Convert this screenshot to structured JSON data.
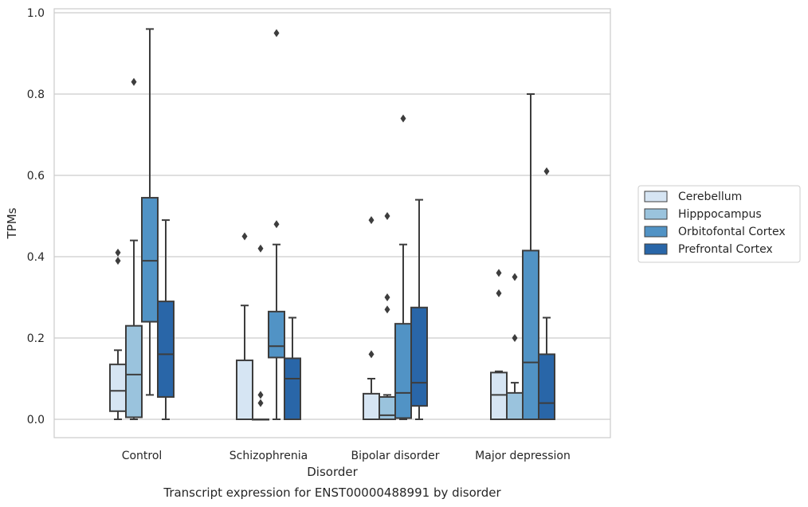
{
  "caption": "Transcript expression for ENST00000488991 by disorder",
  "chart_data": {
    "type": "boxplot",
    "xlabel": "Disorder",
    "ylabel": "TPMs",
    "ylim": [
      -0.045,
      1.01
    ],
    "yticks": [
      "0.0",
      "0.2",
      "0.4",
      "0.6",
      "0.8",
      "1.0"
    ],
    "grid": "horizontal",
    "legend_position": "right",
    "categories": [
      "Control",
      "Schizophrenia",
      "Bipolar disorder",
      "Major depression"
    ],
    "series": [
      {
        "name": "Cerebellum",
        "color": "#d6e5f3",
        "boxes": [
          {
            "whislo": 0.0,
            "q1": 0.02,
            "med": 0.07,
            "q3": 0.135,
            "whishi": 0.17,
            "fliers": [
              0.39,
              0.41
            ]
          },
          {
            "whislo": 0.0,
            "q1": 0.0,
            "med": 0.0,
            "q3": 0.145,
            "whishi": 0.28,
            "fliers": [
              0.45
            ]
          },
          {
            "whislo": 0.0,
            "q1": 0.0,
            "med": 0.0,
            "q3": 0.063,
            "whishi": 0.1,
            "fliers": [
              0.16,
              0.49
            ]
          },
          {
            "whislo": 0.0,
            "q1": 0.0,
            "med": 0.06,
            "q3": 0.115,
            "whishi": 0.118,
            "fliers": [
              0.31,
              0.36
            ]
          }
        ]
      },
      {
        "name": "Hipppocampus",
        "color": "#9ac3dd",
        "boxes": [
          {
            "whislo": 0.0,
            "q1": 0.005,
            "med": 0.11,
            "q3": 0.23,
            "whishi": 0.44,
            "fliers": [
              0.83
            ]
          },
          {
            "whislo": 0.0,
            "q1": 0.0,
            "med": 0.0,
            "q3": 0.0,
            "whishi": 0.0,
            "fliers": [
              0.04,
              0.06,
              0.42
            ]
          },
          {
            "whislo": 0.0,
            "q1": 0.0,
            "med": 0.01,
            "q3": 0.055,
            "whishi": 0.06,
            "fliers": [
              0.27,
              0.3,
              0.5
            ]
          },
          {
            "whislo": 0.0,
            "q1": 0.0,
            "med": 0.0,
            "q3": 0.065,
            "whishi": 0.09,
            "fliers": [
              0.2,
              0.35
            ]
          }
        ]
      },
      {
        "name": "Orbitofontal Cortex",
        "color": "#5193c5",
        "boxes": [
          {
            "whislo": 0.06,
            "q1": 0.24,
            "med": 0.39,
            "q3": 0.545,
            "whishi": 0.96,
            "fliers": []
          },
          {
            "whislo": 0.0,
            "q1": 0.152,
            "med": 0.18,
            "q3": 0.265,
            "whishi": 0.43,
            "fliers": [
              0.48,
              0.95
            ]
          },
          {
            "whislo": 0.0,
            "q1": 0.003,
            "med": 0.065,
            "q3": 0.235,
            "whishi": 0.43,
            "fliers": [
              0.74
            ]
          },
          {
            "whislo": 0.0,
            "q1": 0.0,
            "med": 0.14,
            "q3": 0.415,
            "whishi": 0.8,
            "fliers": []
          }
        ]
      },
      {
        "name": "Prefrontal Cortex",
        "color": "#2966a8",
        "boxes": [
          {
            "whislo": 0.0,
            "q1": 0.055,
            "med": 0.16,
            "q3": 0.29,
            "whishi": 0.49,
            "fliers": []
          },
          {
            "whislo": 0.0,
            "q1": 0.0,
            "med": 0.1,
            "q3": 0.15,
            "whishi": 0.25,
            "fliers": []
          },
          {
            "whislo": 0.0,
            "q1": 0.033,
            "med": 0.09,
            "q3": 0.275,
            "whishi": 0.54,
            "fliers": []
          },
          {
            "whislo": 0.0,
            "q1": 0.0,
            "med": 0.04,
            "q3": 0.16,
            "whishi": 0.25,
            "fliers": [
              0.61
            ]
          }
        ]
      }
    ]
  }
}
